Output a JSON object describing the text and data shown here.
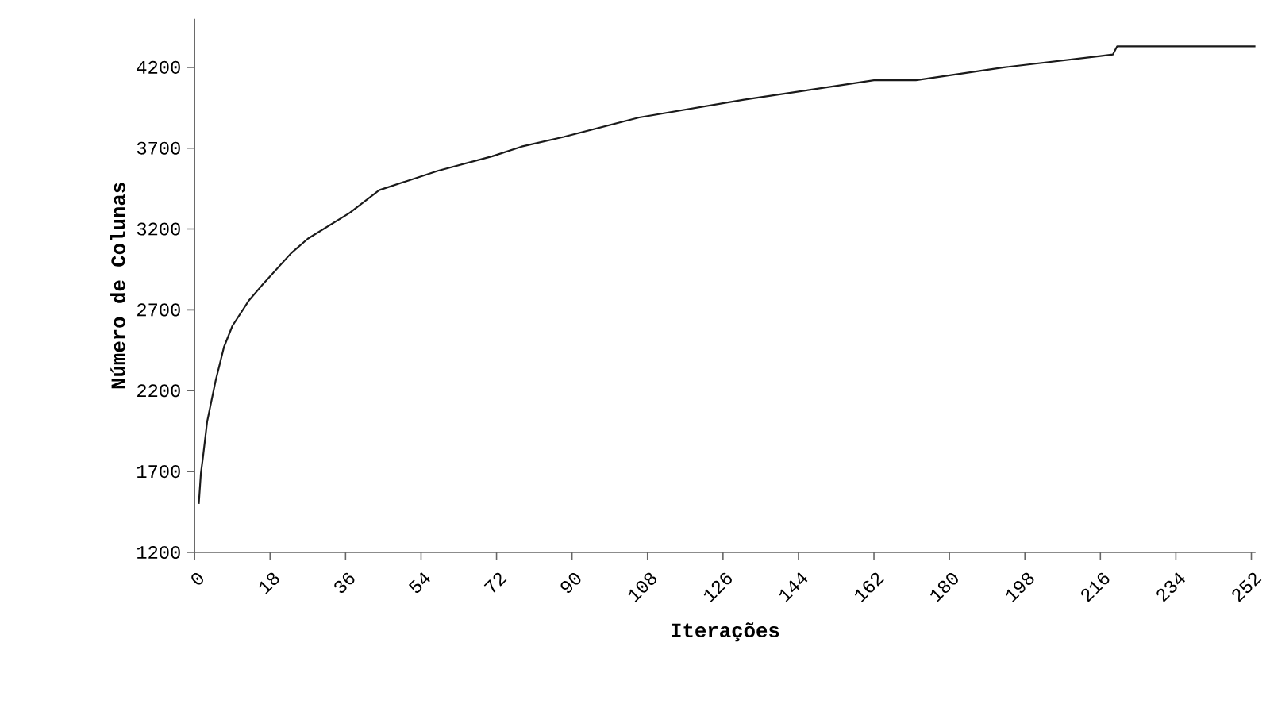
{
  "chart_data": {
    "type": "line",
    "xlabel": "Iterações",
    "ylabel": "Número de Colunas",
    "x": [
      1,
      1.5,
      2,
      3,
      5,
      7,
      9,
      13,
      16,
      23,
      27,
      37,
      44,
      51,
      58,
      71,
      78,
      88,
      106,
      131,
      162,
      172,
      193,
      216,
      219,
      220,
      253
    ],
    "series": [
      {
        "color": "#1a1a1a",
        "values": [
          1500,
          1690,
          1790,
          2010,
          2260,
          2470,
          2600,
          2760,
          2850,
          3050,
          3140,
          3300,
          3440,
          3500,
          3560,
          3650,
          3710,
          3770,
          3890,
          4000,
          4120,
          4120,
          4200,
          4270,
          4280,
          4330,
          4330
        ]
      }
    ],
    "xlim": [
      0,
      253
    ],
    "ylim": [
      1200,
      4500
    ],
    "xticks": [
      0,
      18,
      36,
      54,
      72,
      90,
      108,
      126,
      144,
      162,
      180,
      198,
      216,
      234,
      252
    ],
    "yticks": [
      1200,
      1700,
      2200,
      2700,
      3200,
      3700,
      4200
    ],
    "grid": false,
    "marker": "none",
    "line_style": "solid"
  }
}
